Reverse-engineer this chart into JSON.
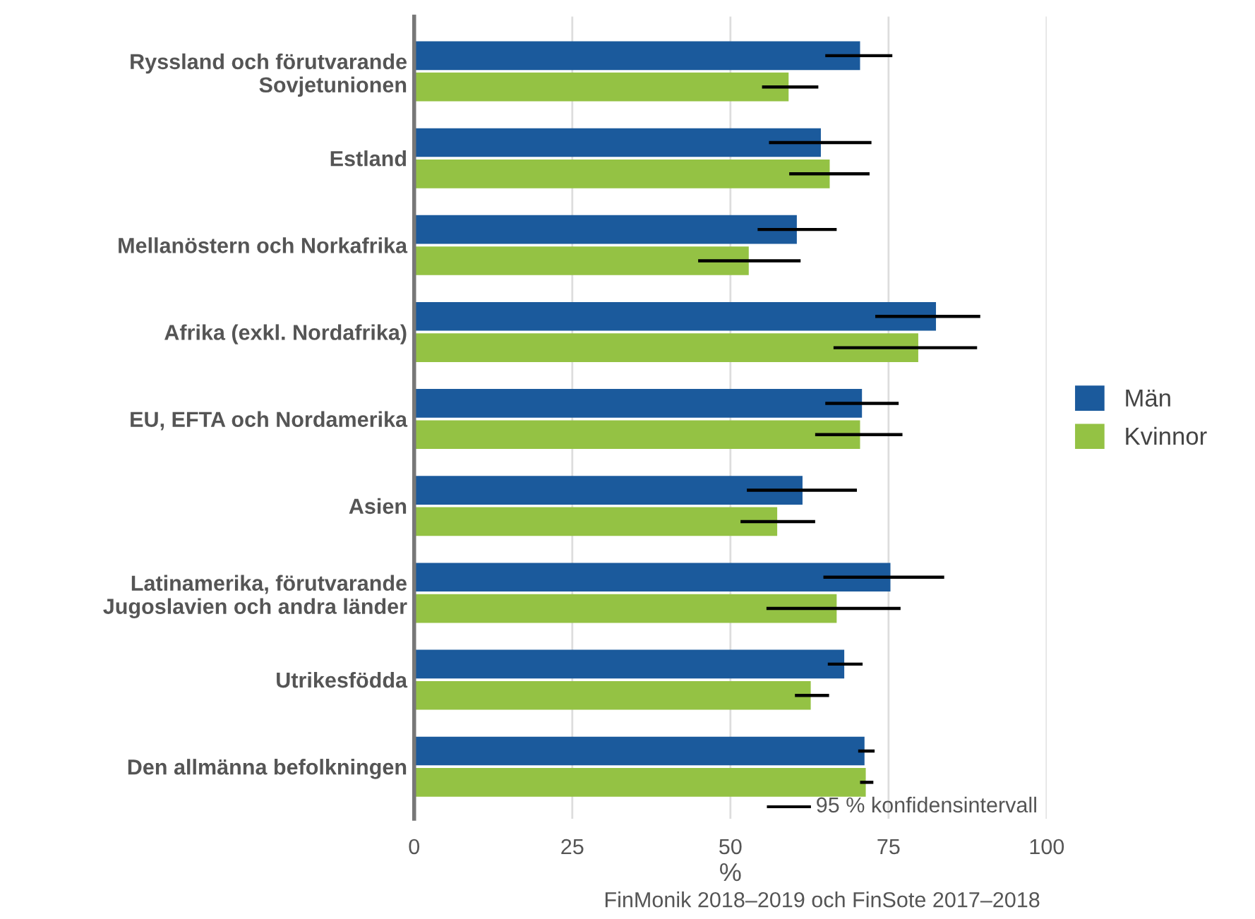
{
  "chart_data": {
    "type": "bar",
    "orientation": "horizontal",
    "xlabel": "%",
    "categories": [
      "Ryssland och förutvarande\nSovjetunionen",
      "Estland",
      "Mellanöstern och Norkafrika",
      "Afrika (exkl. Nordafrika)",
      "EU, EFTA och Nordamerika",
      "Asien",
      "Latinamerika, förutvarande\nJugoslavien och andra länder",
      "Utrikesfödda",
      "Den allmänna befolkningen"
    ],
    "series": [
      {
        "name": "Män",
        "color": "#1b5a9c",
        "values": [
          70.5,
          64.3,
          60.5,
          82.5,
          70.8,
          61.4,
          75.3,
          68.0,
          71.2
        ],
        "errors": [
          [
            65.0,
            75.6
          ],
          [
            56.1,
            72.3
          ],
          [
            54.3,
            66.8
          ],
          [
            72.9,
            89.5
          ],
          [
            65.0,
            76.6
          ],
          [
            52.6,
            70.0
          ],
          [
            64.7,
            83.8
          ],
          [
            65.4,
            70.9
          ],
          [
            70.2,
            72.8
          ]
        ]
      },
      {
        "name": "Kvinnor",
        "color": "#94c244",
        "values": [
          59.2,
          65.7,
          52.9,
          79.7,
          70.5,
          57.4,
          66.8,
          62.7,
          71.4
        ],
        "errors": [
          [
            55.0,
            63.9
          ],
          [
            59.3,
            72.0
          ],
          [
            44.9,
            61.1
          ],
          [
            66.3,
            89.0
          ],
          [
            63.4,
            77.2
          ],
          [
            51.6,
            63.4
          ],
          [
            55.7,
            76.9
          ],
          [
            60.2,
            65.6
          ],
          [
            70.5,
            72.6
          ]
        ]
      }
    ],
    "xlim": [
      0,
      100
    ],
    "xticks": [
      0,
      25,
      50,
      75,
      100
    ],
    "grid": "x",
    "legend": "right",
    "annotations": [
      "95 % konfidensintervall",
      "FinMonik 2018–2019 och FinSote 2017–2018"
    ]
  }
}
